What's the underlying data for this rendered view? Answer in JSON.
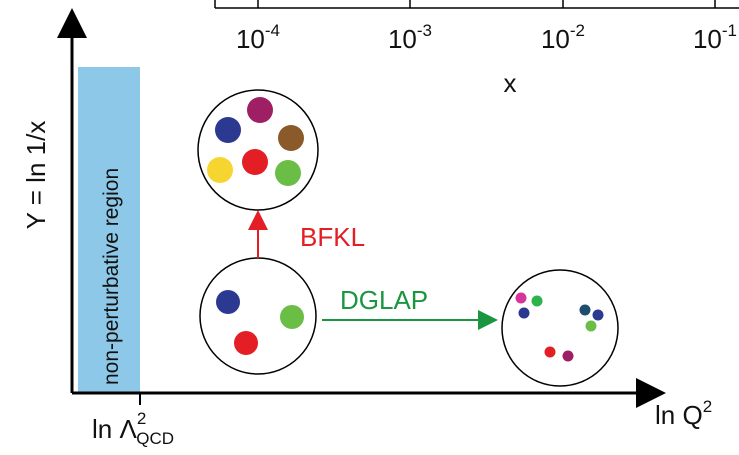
{
  "top_axis": {
    "ticks": [
      {
        "base": "10",
        "exponent": "-4"
      },
      {
        "base": "10",
        "exponent": "-3"
      },
      {
        "base": "10",
        "exponent": "-2"
      },
      {
        "base": "10",
        "exponent": "-1"
      }
    ],
    "label": "x"
  },
  "y_axis": {
    "label": "Y = ln 1/x"
  },
  "x_axis": {
    "label": {
      "text": "ln Q",
      "sup": "2"
    },
    "tick": {
      "text": "ln Λ",
      "sup": "2",
      "sub": "QCD"
    }
  },
  "region": {
    "label": "non-perturbative region"
  },
  "arrows": {
    "bfkl": "BFKL",
    "dglap": "DGLAP"
  }
}
